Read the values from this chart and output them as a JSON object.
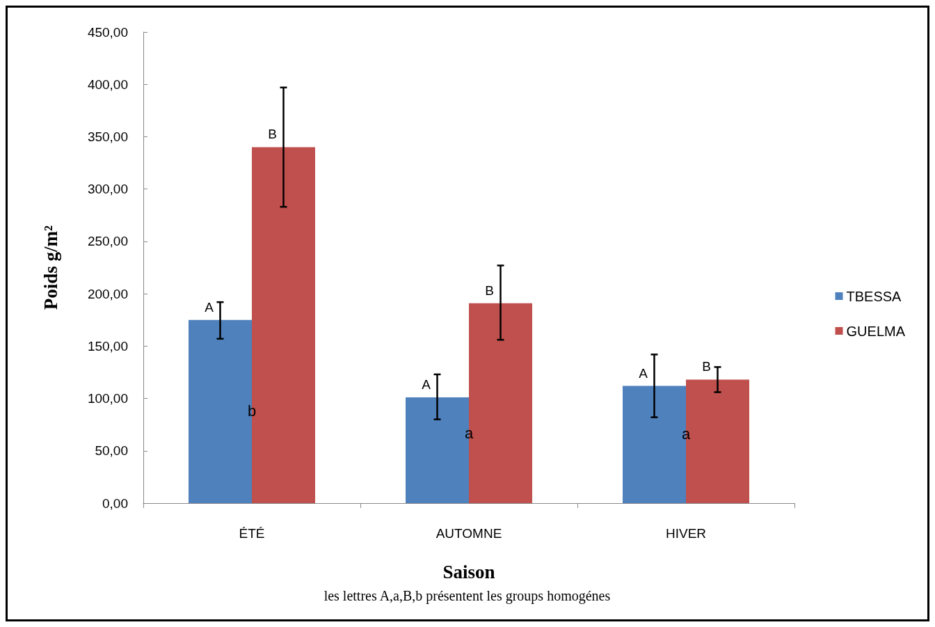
{
  "chart_data": {
    "type": "bar",
    "xlabel": "Saison",
    "ylabel": "Poids g/m²",
    "categories": [
      "ÉTÉ",
      "AUTOMNE",
      "HIVER"
    ],
    "series": [
      {
        "name": "TBESSA",
        "color": "#4f81bd",
        "values": [
          175,
          101,
          112
        ],
        "errors": [
          [
            157,
            192
          ],
          [
            80,
            123
          ],
          [
            82,
            142
          ]
        ],
        "value_labels": [
          "A",
          "A",
          "A"
        ]
      },
      {
        "name": "GUELMA",
        "color": "#c0504d",
        "values": [
          340,
          191,
          118
        ],
        "errors": [
          [
            283,
            397
          ],
          [
            156,
            227
          ],
          [
            106,
            130
          ]
        ],
        "value_labels": [
          "B",
          "B",
          "B"
        ]
      }
    ],
    "ylim": [
      0,
      450
    ],
    "yticks": [
      {
        "value": 0,
        "label": "0,00"
      },
      {
        "value": 50,
        "label": "50,00"
      },
      {
        "value": 100,
        "label": "100,00"
      },
      {
        "value": 150,
        "label": "150,00"
      },
      {
        "value": 200,
        "label": "200,00"
      },
      {
        "value": 250,
        "label": "250,00"
      },
      {
        "value": 300,
        "label": "300,00"
      },
      {
        "value": 350,
        "label": "350,00"
      },
      {
        "value": 400,
        "label": "400,00"
      },
      {
        "value": 450,
        "label": "450,00"
      }
    ],
    "grid": false,
    "legend": "right",
    "annotations": [
      {
        "text": "b",
        "x": "ÉTÉ",
        "y": 88
      },
      {
        "text": "a",
        "x": "AUTOMNE",
        "y": 67
      },
      {
        "text": "a",
        "x": "HIVER",
        "y": 66
      },
      "les lettres A,a,B,b présentent les groups homogénes"
    ]
  }
}
